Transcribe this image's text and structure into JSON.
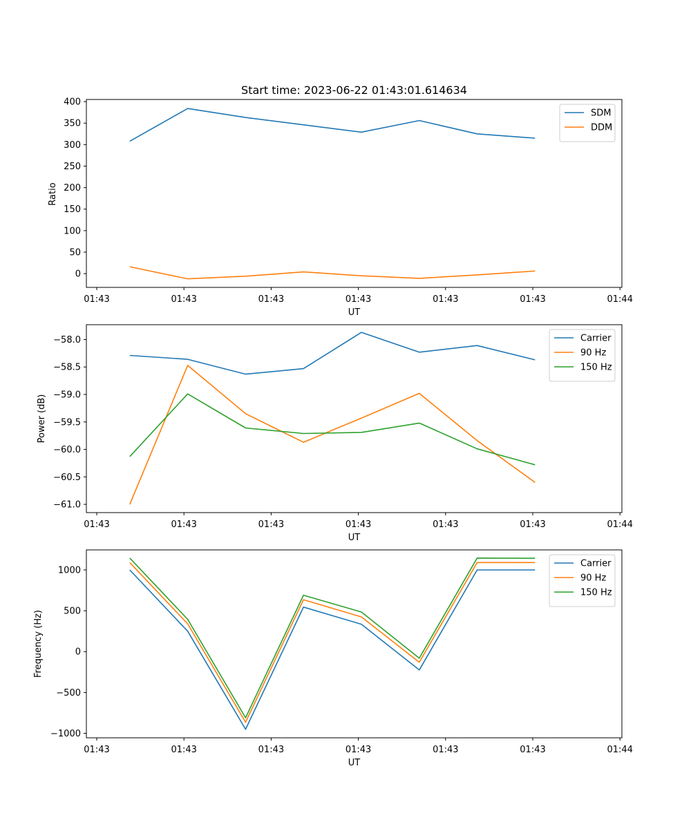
{
  "chart_data": [
    {
      "type": "line",
      "title": "Start time: 2023-06-22 01:43:01.614634",
      "xlabel": "UT",
      "ylabel": "Ratio",
      "xtick_labels": [
        "01:43",
        "01:43",
        "01:43",
        "01:43",
        "01:43",
        "01:43",
        "01:44"
      ],
      "x": [
        0,
        1,
        2,
        3,
        4,
        5,
        6,
        7
      ],
      "xlim": [
        -0.75,
        8.5
      ],
      "ylim": [
        -32,
        405
      ],
      "yticks": [
        0,
        50,
        100,
        150,
        200,
        250,
        300,
        350,
        400
      ],
      "ytick_labels": [
        "0",
        "50",
        "100",
        "150",
        "200",
        "250",
        "300",
        "350",
        "400"
      ],
      "grid": false,
      "legend_position": "top-right",
      "series": [
        {
          "name": "SDM",
          "color": "#1f77b4",
          "values": [
            308,
            384,
            363,
            346,
            329,
            356,
            325,
            315
          ]
        },
        {
          "name": "DDM",
          "color": "#ff7f0e",
          "values": [
            16,
            -12,
            -6,
            4,
            -5,
            -11,
            -3,
            6
          ]
        }
      ]
    },
    {
      "type": "line",
      "title": "",
      "xlabel": "UT",
      "ylabel": "Power (dB)",
      "xtick_labels": [
        "01:43",
        "01:43",
        "01:43",
        "01:43",
        "01:43",
        "01:43",
        "01:44"
      ],
      "x": [
        0,
        1,
        2,
        3,
        4,
        5,
        6,
        7
      ],
      "xlim": [
        -0.75,
        8.5
      ],
      "ylim": [
        -61.15,
        -57.73
      ],
      "yticks": [
        -61.0,
        -60.5,
        -60.0,
        -59.5,
        -59.0,
        -58.5,
        -58.0
      ],
      "ytick_labels": [
        "−61.0",
        "−60.5",
        "−60.0",
        "−59.5",
        "−59.0",
        "−58.5",
        "−58.0"
      ],
      "grid": false,
      "legend_position": "top-right",
      "series": [
        {
          "name": "Carrier",
          "color": "#1f77b4",
          "values": [
            -58.29,
            -58.36,
            -58.63,
            -58.53,
            -57.87,
            -58.23,
            -58.11,
            -58.37
          ]
        },
        {
          "name": "90 Hz",
          "color": "#ff7f0e",
          "values": [
            -61.0,
            -58.47,
            -59.35,
            -59.87,
            -59.43,
            -58.98,
            -59.84,
            -60.6
          ]
        },
        {
          "name": "150 Hz",
          "color": "#2ca02c",
          "values": [
            -60.13,
            -58.99,
            -59.61,
            -59.71,
            -59.69,
            -59.52,
            -59.99,
            -60.28
          ]
        }
      ]
    },
    {
      "type": "line",
      "title": "",
      "xlabel": "UT",
      "ylabel": "Frequency (Hz)",
      "xtick_labels": [
        "01:43",
        "01:43",
        "01:43",
        "01:43",
        "01:43",
        "01:43",
        "01:44"
      ],
      "x": [
        0,
        1,
        2,
        3,
        4,
        5,
        6,
        7
      ],
      "xlim": [
        -0.75,
        8.5
      ],
      "ylim": [
        -1055,
        1245
      ],
      "yticks": [
        -1000,
        -500,
        0,
        500,
        1000
      ],
      "ytick_labels": [
        "−1000",
        "−500",
        "0",
        "500",
        "1000"
      ],
      "grid": false,
      "legend_position": "top-right",
      "series": [
        {
          "name": "Carrier",
          "color": "#1f77b4",
          "values": [
            1000,
            250,
            -950,
            545,
            335,
            -225,
            1000,
            1000
          ]
        },
        {
          "name": "90 Hz",
          "color": "#ff7f0e",
          "values": [
            1090,
            340,
            -865,
            635,
            425,
            -130,
            1090,
            1090
          ]
        },
        {
          "name": "150 Hz",
          "color": "#2ca02c",
          "values": [
            1145,
            395,
            -810,
            690,
            485,
            -80,
            1145,
            1143
          ]
        }
      ]
    }
  ]
}
